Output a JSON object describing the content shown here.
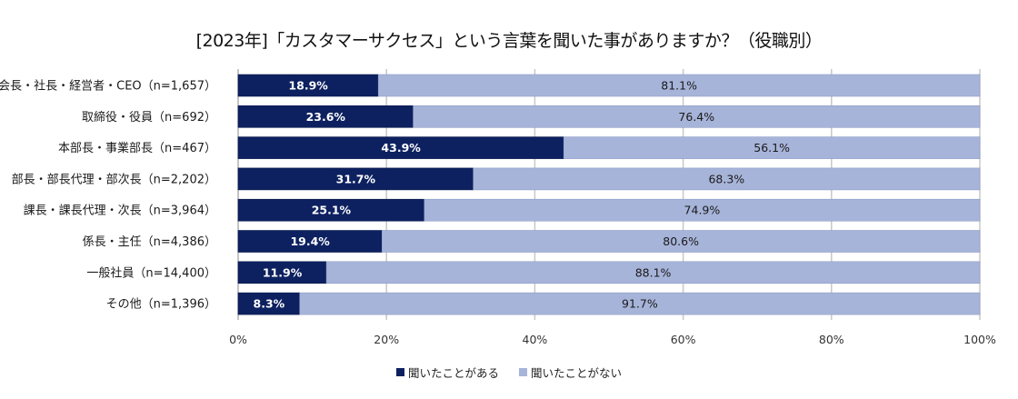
{
  "chart_data": {
    "type": "bar",
    "orientation": "horizontal",
    "stacked": true,
    "title": "[2023年]「カスタマーサクセス」という言葉を聞いた事がありますか？（役職別）",
    "xlabel": "",
    "ylabel": "",
    "xlim": [
      0,
      100
    ],
    "x_ticks": [
      "0%",
      "20%",
      "40%",
      "60%",
      "80%",
      "100%"
    ],
    "x_tick_values": [
      0,
      20,
      40,
      60,
      80,
      100
    ],
    "grid": true,
    "legend_position": "bottom",
    "categories": [
      "会長・社長・経営者・CEO（n=1,657）",
      "取締役・役員（n=692）",
      "本部長・事業部長（n=467）",
      "部長・部長代理・部次長（n=2,202）",
      "課長・課長代理・次長（n=3,964）",
      "係長・主任（n=4,386）",
      "一般社員（n=14,400）",
      "その他（n=1,396）"
    ],
    "series": [
      {
        "name": "聞いたことがある",
        "color": "#0d2160",
        "values": [
          18.9,
          23.6,
          43.9,
          31.7,
          25.1,
          19.4,
          11.9,
          8.3
        ],
        "labels": [
          "18.9%",
          "23.6%",
          "43.9%",
          "31.7%",
          "25.1%",
          "19.4%",
          "11.9%",
          "8.3%"
        ]
      },
      {
        "name": "聞いたことがない",
        "color": "#a7b4d9",
        "values": [
          81.1,
          76.4,
          56.1,
          68.3,
          74.9,
          80.6,
          88.1,
          91.7
        ],
        "labels": [
          "81.1%",
          "76.4%",
          "56.1%",
          "68.3%",
          "74.9%",
          "80.6%",
          "88.1%",
          "91.7%"
        ]
      }
    ]
  },
  "colors": {
    "gridline": "#c8c8c8",
    "axis": "#b0b0b0"
  }
}
